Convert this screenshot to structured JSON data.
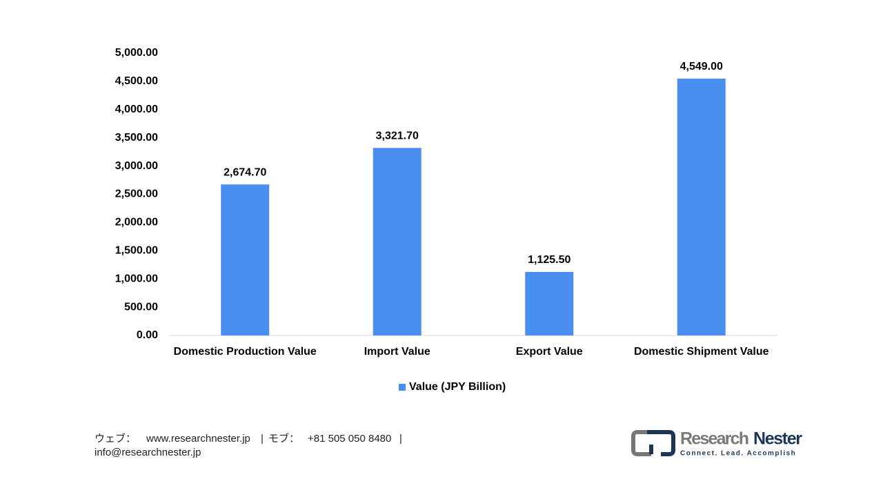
{
  "chart_data": {
    "type": "bar",
    "categories": [
      "Domestic Production Value",
      "Import Value",
      "Export Value",
      "Domestic Shipment Value"
    ],
    "series": [
      {
        "name": "Value (JPY Billion)",
        "color": "#4a8ef0",
        "values": [
          2674.7,
          3321.7,
          1125.5,
          4549.0
        ],
        "value_labels": [
          "2,674.70",
          "3,321.70",
          "1,125.50",
          "4,549.00"
        ]
      }
    ],
    "ylim": [
      0,
      5000
    ],
    "yticks": [
      {
        "value": 0,
        "label": "0.00"
      },
      {
        "value": 500,
        "label": "500.00"
      },
      {
        "value": 1000,
        "label": "1,000.00"
      },
      {
        "value": 1500,
        "label": "1,500.00"
      },
      {
        "value": 2000,
        "label": "2,000.00"
      },
      {
        "value": 2500,
        "label": "2,500.00"
      },
      {
        "value": 3000,
        "label": "3,000.00"
      },
      {
        "value": 3500,
        "label": "3,500.00"
      },
      {
        "value": 4000,
        "label": "4,000.00"
      },
      {
        "value": 4500,
        "label": "4,500.00"
      },
      {
        "value": 5000,
        "label": "5,000.00"
      }
    ],
    "grid": false,
    "legend": "bottom"
  },
  "footer": {
    "web_label": "ウェブ：",
    "web": "www.researchnester.jp",
    "separator": "|",
    "mobile_label": "モブ：",
    "mobile": "+81 505 050 8480",
    "email": "info@researchnester.jp"
  },
  "logo": {
    "name_1": "Research",
    "name_2": "Nester",
    "tagline": "Connect. Lead. Accomplish"
  }
}
